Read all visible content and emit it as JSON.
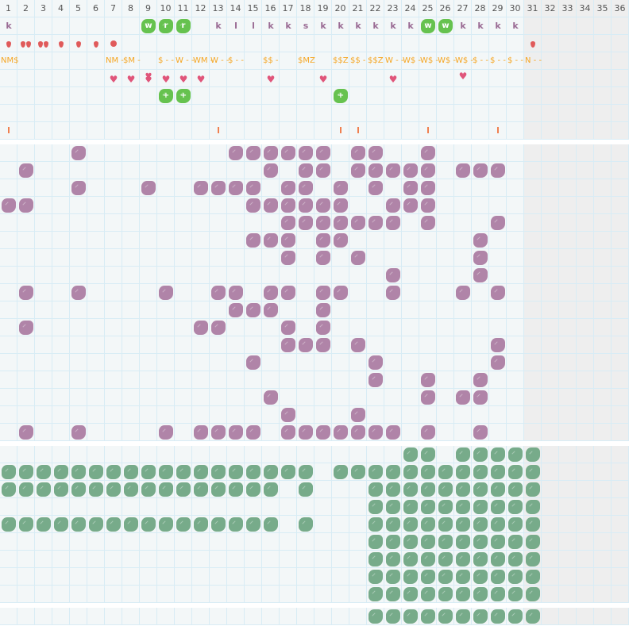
{
  "columns": [
    1,
    2,
    3,
    4,
    5,
    6,
    7,
    8,
    9,
    10,
    11,
    12,
    13,
    14,
    15,
    16,
    17,
    18,
    19,
    20,
    21,
    22,
    23,
    24,
    25,
    26,
    27,
    28,
    29,
    30,
    31,
    32,
    33,
    34,
    35,
    36
  ],
  "active_columns": 30,
  "colors": {
    "purple": "#b084a8",
    "green": "#77ab8a",
    "bright_green": "#66c24f",
    "letter": "#9a6b94",
    "drop": "#e05a5a",
    "money": "#f5a623",
    "heart": "#e0557a",
    "tick": "#f08050",
    "disabled": "#eeeeee"
  },
  "top_rows": {
    "letters": [
      {
        "col": 1,
        "text": "k"
      },
      {
        "col": 9,
        "text": "w",
        "badge": true
      },
      {
        "col": 10,
        "text": "r",
        "badge": true
      },
      {
        "col": 11,
        "text": "r",
        "badge": true
      },
      {
        "col": 13,
        "text": "k"
      },
      {
        "col": 14,
        "text": "l"
      },
      {
        "col": 15,
        "text": "l"
      },
      {
        "col": 16,
        "text": "k"
      },
      {
        "col": 17,
        "text": "k"
      },
      {
        "col": 18,
        "text": "s"
      },
      {
        "col": 19,
        "text": "k"
      },
      {
        "col": 20,
        "text": "k"
      },
      {
        "col": 21,
        "text": "k"
      },
      {
        "col": 22,
        "text": "k"
      },
      {
        "col": 23,
        "text": "k"
      },
      {
        "col": 24,
        "text": "k"
      },
      {
        "col": 25,
        "text": "w",
        "badge": true
      },
      {
        "col": 26,
        "text": "w",
        "badge": true
      },
      {
        "col": 27,
        "text": "k"
      },
      {
        "col": 28,
        "text": "k"
      },
      {
        "col": 29,
        "text": "k"
      },
      {
        "col": 30,
        "text": "k"
      }
    ],
    "drops": [
      {
        "col": 1,
        "count": 1
      },
      {
        "col": 2,
        "count": 2
      },
      {
        "col": 3,
        "count": 2
      },
      {
        "col": 4,
        "count": 1
      },
      {
        "col": 5,
        "count": 1
      },
      {
        "col": 6,
        "count": 1
      },
      {
        "col": 7,
        "count": 0,
        "icon": "circle"
      },
      {
        "col": 31,
        "count": 1
      }
    ],
    "money": [
      {
        "col": 1,
        "text": "NM$"
      },
      {
        "col": 7,
        "text": "NM -"
      },
      {
        "col": 8,
        "text": "$M -"
      },
      {
        "col": 10,
        "text": "$ - -"
      },
      {
        "col": 11,
        "text": "W - -"
      },
      {
        "col": 12,
        "text": "WM -"
      },
      {
        "col": 13,
        "text": "W - -"
      },
      {
        "col": 14,
        "text": "$ - -"
      },
      {
        "col": 16,
        "text": "$$ -"
      },
      {
        "col": 18,
        "text": "$MZ"
      },
      {
        "col": 20,
        "text": "$$Z"
      },
      {
        "col": 21,
        "text": "$$ -"
      },
      {
        "col": 22,
        "text": "$$Z"
      },
      {
        "col": 23,
        "text": "W - -"
      },
      {
        "col": 24,
        "text": "W$ -"
      },
      {
        "col": 25,
        "text": "W$ -"
      },
      {
        "col": 26,
        "text": "W$ -"
      },
      {
        "col": 27,
        "text": "W$ -"
      },
      {
        "col": 28,
        "text": "$ - -"
      },
      {
        "col": 29,
        "text": "$ - -"
      },
      {
        "col": 30,
        "text": "$ - -"
      },
      {
        "col": 31,
        "text": "N - -"
      }
    ],
    "hearts": [
      {
        "col": 7
      },
      {
        "col": 8
      },
      {
        "col": 9,
        "double": true
      },
      {
        "col": 10
      },
      {
        "col": 11
      },
      {
        "col": 12
      },
      {
        "col": 16
      },
      {
        "col": 19
      },
      {
        "col": 23
      },
      {
        "col": 27,
        "raised": true
      }
    ],
    "plus_badges": [
      {
        "col": 10,
        "text": "+"
      },
      {
        "col": 11,
        "text": "+"
      },
      {
        "col": 20,
        "text": "+"
      }
    ],
    "ticks": [
      1,
      13,
      20,
      21,
      25,
      29
    ]
  },
  "purple_rows": [
    [
      5,
      14,
      15,
      16,
      17,
      18,
      19,
      21,
      22,
      25
    ],
    [
      2,
      16,
      18,
      19,
      21,
      22,
      23,
      24,
      25,
      27,
      28,
      29
    ],
    [
      5,
      9,
      12,
      13,
      14,
      15,
      17,
      18,
      20,
      22,
      24,
      25
    ],
    [
      1,
      2,
      15,
      16,
      17,
      18,
      19,
      20,
      23,
      24,
      25
    ],
    [
      17,
      18,
      19,
      20,
      21,
      22,
      23,
      25,
      29
    ],
    [
      15,
      16,
      17,
      19,
      20,
      28
    ],
    [
      17,
      19,
      21,
      28
    ],
    [
      23,
      28
    ],
    [
      2,
      5,
      10,
      13,
      14,
      16,
      17,
      19,
      20,
      23,
      27,
      29
    ],
    [
      14,
      15,
      16,
      19
    ],
    [
      2,
      12,
      13,
      17,
      19
    ],
    [
      17,
      18,
      19,
      21,
      29
    ],
    [
      15,
      22,
      29
    ],
    [
      22,
      25,
      28
    ],
    [
      16,
      25,
      27,
      28
    ],
    [
      17,
      21
    ],
    [
      2,
      5,
      10,
      12,
      13,
      14,
      15,
      17,
      18,
      19,
      20,
      21,
      22,
      23,
      25,
      28
    ]
  ],
  "green_rows": [
    [
      24,
      25,
      27,
      28,
      29,
      30,
      31
    ],
    [
      1,
      2,
      3,
      4,
      5,
      6,
      7,
      8,
      9,
      10,
      11,
      12,
      13,
      14,
      15,
      16,
      17,
      18,
      20,
      21,
      22,
      23,
      24,
      25,
      26,
      27,
      28,
      29,
      30,
      31
    ],
    [
      1,
      2,
      3,
      4,
      5,
      6,
      7,
      8,
      9,
      10,
      11,
      12,
      13,
      14,
      15,
      16,
      18,
      22,
      23,
      24,
      25,
      26,
      27,
      28,
      29,
      30,
      31
    ],
    [
      22,
      23,
      24,
      25,
      26,
      27,
      28,
      29,
      30,
      31
    ],
    [
      1,
      2,
      3,
      4,
      5,
      6,
      7,
      8,
      9,
      10,
      11,
      12,
      13,
      14,
      15,
      16,
      18,
      22,
      23,
      24,
      25,
      26,
      27,
      28,
      29,
      30,
      31
    ],
    [
      22,
      23,
      24,
      25,
      26,
      27,
      28,
      29,
      30,
      31
    ],
    [
      22,
      23,
      24,
      25,
      26,
      27,
      28,
      29,
      30,
      31
    ],
    [
      22,
      23,
      24,
      25,
      26,
      27,
      28,
      29,
      30,
      31
    ],
    [
      22,
      23,
      24,
      25,
      26,
      27,
      28,
      29,
      30,
      31
    ]
  ],
  "summary_row": [
    22,
    23,
    24,
    25,
    26,
    27,
    28,
    29,
    30,
    31
  ]
}
